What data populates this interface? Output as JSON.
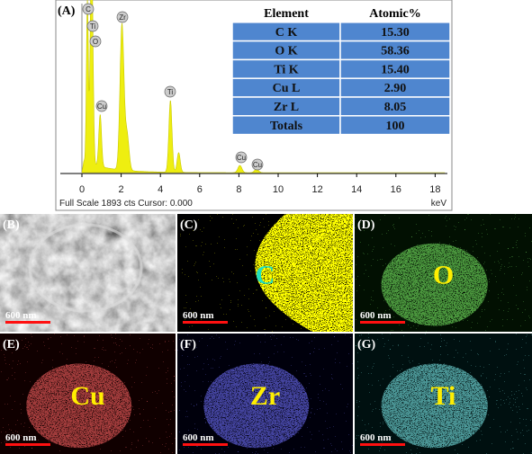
{
  "panel_labels": [
    "(A)",
    "(B)",
    "(C)",
    "(D)",
    "(E)",
    "(F)",
    "(G)"
  ],
  "spectrum": {
    "peak_labels": [
      "C",
      "Ti",
      "O",
      "Zr",
      "Cu",
      "Ti",
      "Cu",
      "Cu"
    ],
    "xticks": [
      0,
      2,
      4,
      6,
      8,
      10,
      12,
      14,
      16,
      18
    ],
    "unit": "keV",
    "status": "Full Scale 1893 cts Cursor: 0.000"
  },
  "table": {
    "header": [
      "Element",
      "Atomic%"
    ],
    "rows": [
      [
        "C K",
        "15.30"
      ],
      [
        "O K",
        "58.36"
      ],
      [
        "Ti K",
        "15.40"
      ],
      [
        "Cu L",
        "2.90"
      ],
      [
        "Zr L",
        "8.05"
      ],
      [
        "Totals",
        "100"
      ]
    ]
  },
  "maps": [
    {
      "scale": "600 nm"
    },
    {
      "element": "C",
      "scale": "600 nm"
    },
    {
      "element": "O",
      "scale": "600 nm"
    },
    {
      "element": "Cu",
      "scale": "600 nm"
    },
    {
      "element": "Zr",
      "scale": "600 nm"
    },
    {
      "element": "Ti",
      "scale": "600 nm"
    }
  ]
}
